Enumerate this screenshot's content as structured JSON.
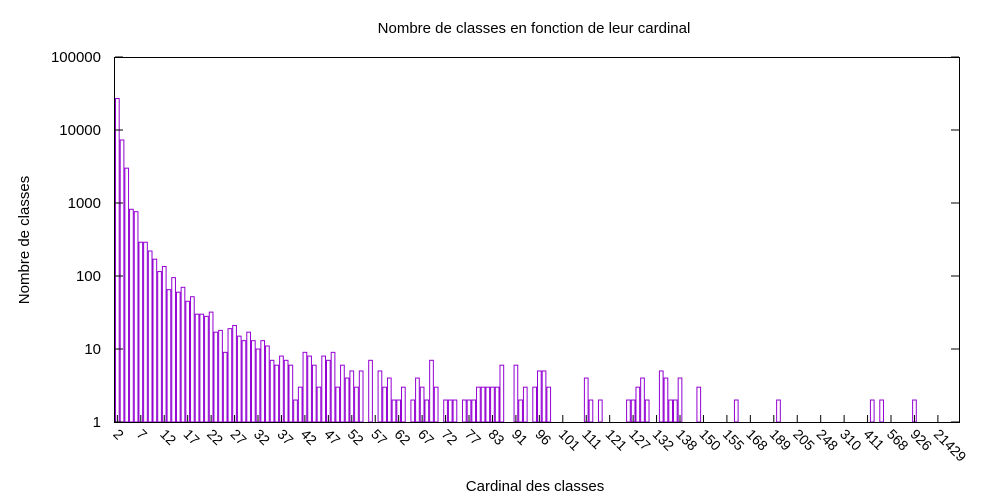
{
  "chart_data": {
    "type": "bar",
    "title": "Nombre de classes en fonction de leur cardinal",
    "xlabel": "Cardinal des classes",
    "ylabel": "Nombre de classes",
    "yscale": "log",
    "ylim": [
      1,
      100000
    ],
    "yticks": [
      "1",
      "10",
      "100",
      "1000",
      "10000",
      "100000"
    ],
    "xtick_labels": [
      "2",
      "7",
      "12",
      "17",
      "22",
      "27",
      "32",
      "37",
      "42",
      "47",
      "52",
      "57",
      "62",
      "67",
      "72",
      "77",
      "83",
      "91",
      "96",
      "101",
      "111",
      "121",
      "127",
      "132",
      "138",
      "150",
      "155",
      "168",
      "189",
      "205",
      "248",
      "310",
      "411",
      "568",
      "926",
      "21429"
    ],
    "xtick_every": 5,
    "grid": false,
    "legend": "none",
    "bar_color": "#9400d3",
    "values": [
      27000,
      7300,
      3000,
      820,
      760,
      290,
      290,
      220,
      170,
      115,
      135,
      65,
      95,
      60,
      70,
      45,
      52,
      30,
      30,
      28,
      32,
      17,
      18,
      9,
      19,
      21,
      15,
      13,
      17,
      13,
      10,
      13,
      11,
      7,
      6,
      8,
      7,
      6,
      2,
      3,
      9,
      8,
      6,
      3,
      8,
      7,
      9,
      3,
      6,
      4,
      5,
      3,
      5,
      1,
      7,
      1,
      5,
      3,
      4,
      2,
      2,
      3,
      1,
      2,
      4,
      3,
      2,
      7,
      3,
      1,
      2,
      2,
      2,
      1,
      2,
      2,
      2,
      3,
      3,
      3,
      3,
      3,
      6,
      1,
      1,
      6,
      2,
      3,
      1,
      3,
      5,
      5,
      3,
      1,
      1,
      1,
      1,
      1,
      1,
      1,
      4,
      2,
      1,
      2,
      1,
      1,
      1,
      1,
      1,
      2,
      2,
      3,
      4,
      2,
      1,
      1,
      5,
      4,
      2,
      2,
      4,
      1,
      1,
      1,
      3,
      1,
      1,
      1,
      1,
      1,
      1,
      1,
      2,
      1,
      1,
      1,
      1,
      1,
      1,
      1,
      1,
      2,
      1,
      1,
      1,
      1,
      1,
      1,
      1,
      1,
      1,
      1,
      1,
      1,
      1,
      1,
      1,
      1,
      1,
      1,
      1,
      2,
      1,
      2,
      1,
      1,
      1,
      1,
      1,
      1,
      2,
      1,
      1,
      1,
      1,
      1,
      1,
      1,
      1,
      1
    ]
  }
}
